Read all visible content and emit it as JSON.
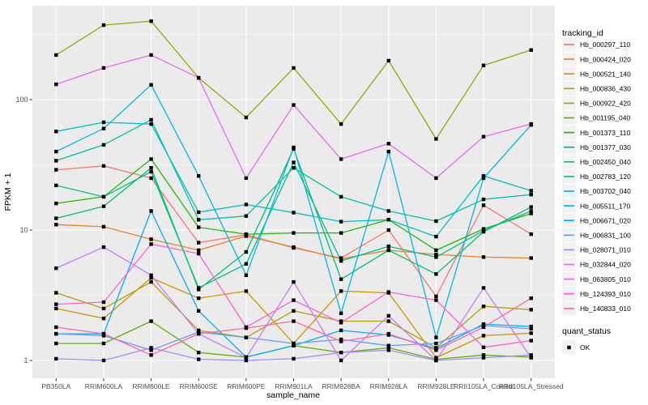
{
  "chart_data": {
    "type": "line",
    "title": "",
    "xlabel": "sample_name",
    "ylabel": "FPKM + 1",
    "x_scale": "discrete",
    "y_scale": "log10",
    "grid": "on",
    "ylim": [
      1,
      450
    ],
    "y_ticks": [
      {
        "value": 1,
        "label": "1"
      },
      {
        "value": 10,
        "label": "10"
      },
      {
        "value": 100,
        "label": "100"
      }
    ],
    "y_minor_gridlines": [
      3.162,
      31.62,
      316.2
    ],
    "panel_bg": "#EBEBEB",
    "grid_color": "#FFFFFF",
    "tick_label_color": "#4D4D4D",
    "point_style": {
      "shape": "filled-square",
      "color": "#000000"
    },
    "legend": {
      "position": "right",
      "color_title": "tracking_id",
      "shape_title": "quant_status",
      "shape_items": [
        "OK"
      ],
      "key_bg": "#F2F2F2"
    },
    "categories": [
      "PB350LA",
      "RRIM600LA",
      "RRIM600LE",
      "RRIM600SE",
      "RRIM600PE",
      "RRIM901LA",
      "RRIM928BA",
      "RRIM928LA",
      "RRIM928LE",
      "RRII105LA_Control",
      "RRII105LA_Stressed"
    ],
    "series": [
      {
        "name": "Hb_000297_110",
        "color": "#F8766D",
        "values": [
          29,
          31,
          25,
          8,
          9.2,
          7.3,
          6.1,
          10,
          3.1,
          15.5,
          9.3
        ]
      },
      {
        "name": "Hb_000424_020",
        "color": "#E88526",
        "values": [
          11,
          10.6,
          8.5,
          7,
          9,
          7.4,
          6,
          7,
          6.5,
          6.2,
          6.1
        ]
      },
      {
        "name": "Hb_000521_140",
        "color": "#D39200",
        "values": [
          2.5,
          2.1,
          4.3,
          3,
          3.4,
          1.35,
          3.4,
          3.3,
          1.05,
          1.55,
          1.62
        ]
      },
      {
        "name": "Hb_000836_430",
        "color": "#B79F00",
        "values": [
          3.3,
          2.5,
          4,
          1.7,
          1.5,
          2.4,
          2,
          2,
          1.25,
          2.6,
          2.45
        ]
      },
      {
        "name": "Hb_000922_420",
        "color": "#93AA00",
        "values": [
          220,
          373,
          400,
          147,
          73,
          175,
          65,
          199,
          50,
          183,
          240
        ]
      },
      {
        "name": "Hb_001195_040",
        "color": "#5EB300",
        "values": [
          1.35,
          1.35,
          2,
          1.15,
          1.06,
          1.3,
          1.15,
          1.25,
          1.02,
          1.1,
          1.06
        ]
      },
      {
        "name": "Hb_001373_110",
        "color": "#24B700",
        "values": [
          16,
          18,
          35,
          10.5,
          9.3,
          9.5,
          9.5,
          12,
          7,
          10.2,
          13.4
        ]
      },
      {
        "name": "Hb_001377_030",
        "color": "#00BE67",
        "values": [
          12.3,
          15.2,
          30,
          3.5,
          6.8,
          42,
          4.2,
          7,
          4.6,
          9.7,
          15
        ]
      },
      {
        "name": "Hb_002450_040",
        "color": "#00C08B",
        "values": [
          22,
          18,
          28,
          3.6,
          5.5,
          33,
          5.8,
          7.5,
          6.2,
          9.9,
          14
        ]
      },
      {
        "name": "Hb_002783_120",
        "color": "#00C1A7",
        "values": [
          34,
          45,
          70,
          12,
          12.8,
          30,
          18,
          14,
          11.7,
          17.2,
          18.7
        ]
      },
      {
        "name": "Hb_003702_040",
        "color": "#00BFC4",
        "values": [
          57,
          67,
          65,
          13.7,
          15.7,
          13.6,
          11.6,
          12,
          8.9,
          26,
          20
        ]
      },
      {
        "name": "Hb_005511_170",
        "color": "#00B9E3",
        "values": [
          40,
          60,
          130,
          26,
          4.5,
          43,
          2.3,
          40,
          1.5,
          25,
          64
        ]
      },
      {
        "name": "Hb_006671_020",
        "color": "#00ADFA",
        "values": [
          1.6,
          1.6,
          14,
          2.4,
          1.06,
          1.3,
          1.7,
          1.57,
          1.23,
          1.9,
          1.82
        ]
      },
      {
        "name": "Hb_006831_100",
        "color": "#619CFF",
        "values": [
          1.6,
          1.55,
          1.2,
          1.65,
          1.5,
          1.35,
          1.45,
          1.3,
          1.35,
          1.85,
          1.75
        ]
      },
      {
        "name": "Hb_028071_010",
        "color": "#A58AFF",
        "values": [
          1.03,
          1,
          1.25,
          1.02,
          1,
          1.03,
          1.15,
          1.2,
          1,
          1.05,
          1.1
        ]
      },
      {
        "name": "Hb_032844_020",
        "color": "#C77CFF",
        "values": [
          5.1,
          7.4,
          4.5,
          1.6,
          1.05,
          4,
          1,
          2.2,
          1,
          3.6,
          1.05
        ]
      },
      {
        "name": "Hb_063805_010",
        "color": "#E76BF3",
        "values": [
          131,
          175,
          220,
          147,
          25,
          91,
          35,
          46,
          25,
          52,
          65
        ]
      },
      {
        "name": "Hb_124393_010",
        "color": "#FD61D1",
        "values": [
          2.7,
          2.8,
          7.8,
          6.6,
          1.8,
          2.9,
          1.95,
          3.35,
          2.9,
          1.26,
          1.42
        ]
      },
      {
        "name": "Hb_140833_010",
        "color": "#FF67A4",
        "values": [
          1.8,
          1.6,
          1.1,
          1.6,
          1.77,
          2,
          1.4,
          1.6,
          1.2,
          1.8,
          3
        ]
      }
    ]
  }
}
